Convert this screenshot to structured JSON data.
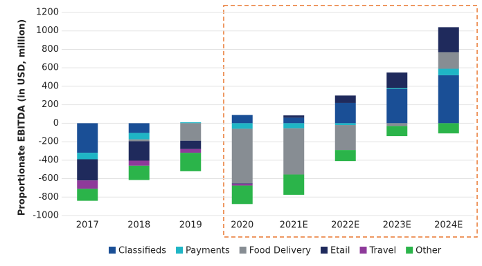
{
  "chart_data": {
    "type": "stacked-bar",
    "y_label": "Proportionate EBITDA (in USD, million)",
    "categories": [
      "2017",
      "2018",
      "2019",
      "2020",
      "2021E",
      "2022E",
      "2023E",
      "2024E"
    ],
    "series": [
      {
        "name": "Classifieds",
        "color": "#1a4f96",
        "values": [
          -320,
          -105,
          0,
          90,
          60,
          220,
          370,
          520
        ]
      },
      {
        "name": "Payments",
        "color": "#1fb5c5",
        "values": [
          -70,
          -70,
          10,
          -60,
          -55,
          -20,
          10,
          70
        ]
      },
      {
        "name": "Food Delivery",
        "color": "#878d93",
        "values": [
          0,
          -20,
          -190,
          -590,
          -500,
          -270,
          -30,
          180
        ]
      },
      {
        "name": "Etail",
        "color": "#1f2a5c",
        "values": [
          -230,
          -210,
          -90,
          -5,
          25,
          80,
          170,
          270
        ]
      },
      {
        "name": "Travel",
        "color": "#8e3a9a",
        "values": [
          -90,
          -55,
          -40,
          -20,
          0,
          0,
          0,
          0
        ]
      },
      {
        "name": "Other",
        "color": "#2bb44a",
        "values": [
          -130,
          -155,
          -200,
          -200,
          -220,
          -120,
          -110,
          -110
        ]
      }
    ],
    "ylim": [
      -1000,
      1200
    ],
    "yticks": [
      -1000,
      -800,
      -600,
      -400,
      -200,
      0,
      200,
      400,
      600,
      800,
      1000,
      1200
    ],
    "grid": true
  }
}
